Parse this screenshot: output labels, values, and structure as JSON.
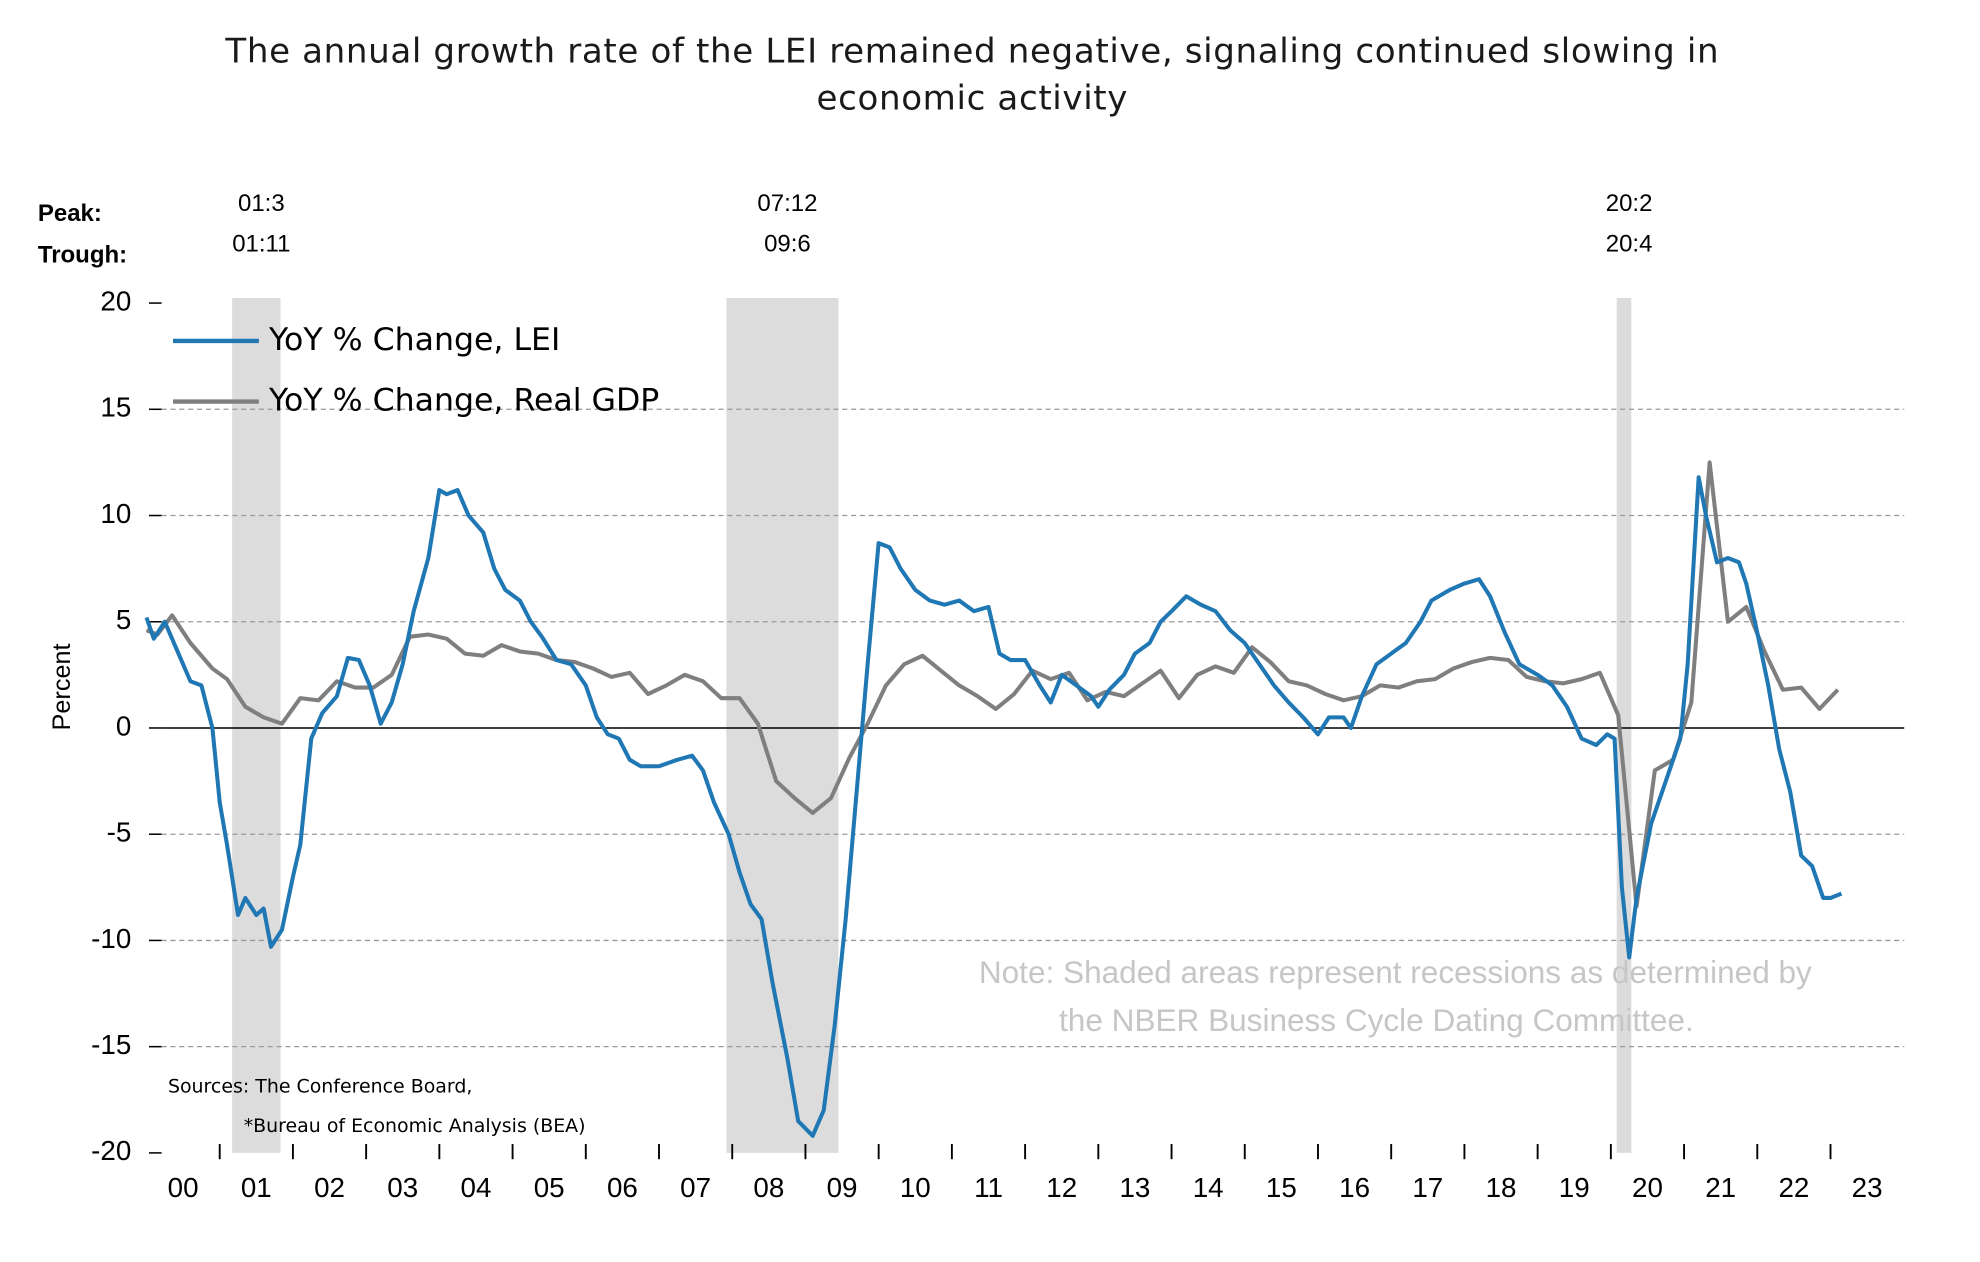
{
  "chart_data": {
    "type": "line",
    "title": "The annual growth rate of the LEI remained negative, signaling continued slowing in",
    "title_line2": "economic activity",
    "y_label": "Percent",
    "peak_label": "Peak:",
    "trough_label": "Trough:",
    "note": "Note: Shaded areas represent recessions as determined by",
    "note_line2": "the NBER Business Cycle Dating Committee.",
    "sources": "Sources: The Conference Board,",
    "sources_line2": "*Bureau of Economic Analysis (BEA)",
    "xlim": [
      2000,
      2023.8
    ],
    "ylim": [
      -20,
      20
    ],
    "yticks": [
      -20,
      -15,
      -10,
      -5,
      0,
      5,
      10,
      15,
      20
    ],
    "xticks": [
      {
        "value": 2000.5,
        "label": "00"
      },
      {
        "value": 2001.5,
        "label": "01"
      },
      {
        "value": 2002.5,
        "label": "02"
      },
      {
        "value": 2003.5,
        "label": "03"
      },
      {
        "value": 2004.5,
        "label": "04"
      },
      {
        "value": 2005.5,
        "label": "05"
      },
      {
        "value": 2006.5,
        "label": "06"
      },
      {
        "value": 2007.5,
        "label": "07"
      },
      {
        "value": 2008.5,
        "label": "08"
      },
      {
        "value": 2009.5,
        "label": "09"
      },
      {
        "value": 2010.5,
        "label": "10"
      },
      {
        "value": 2011.5,
        "label": "11"
      },
      {
        "value": 2012.5,
        "label": "12"
      },
      {
        "value": 2013.5,
        "label": "13"
      },
      {
        "value": 2014.5,
        "label": "14"
      },
      {
        "value": 2015.5,
        "label": "15"
      },
      {
        "value": 2016.5,
        "label": "16"
      },
      {
        "value": 2017.5,
        "label": "17"
      },
      {
        "value": 2018.5,
        "label": "18"
      },
      {
        "value": 2019.5,
        "label": "19"
      },
      {
        "value": 2020.5,
        "label": "20"
      },
      {
        "value": 2021.5,
        "label": "21"
      },
      {
        "value": 2022.5,
        "label": "22"
      },
      {
        "value": 2023.5,
        "label": "23"
      }
    ],
    "grid": true,
    "recession_color": "#dcdcdc",
    "recessions": [
      {
        "peak": "01:3",
        "trough": "01:11",
        "start": 2001.17,
        "end": 2001.83
      },
      {
        "peak": "07:12",
        "trough": "09:6",
        "start": 2007.92,
        "end": 2009.45
      },
      {
        "peak": "20:2",
        "trough": "20:4",
        "start": 2020.08,
        "end": 2020.28
      }
    ],
    "series": [
      {
        "name": "YoY % Change, LEI",
        "color": "#1f77b4",
        "x": [
          2000.0,
          2000.1,
          2000.25,
          2000.4,
          2000.6,
          2000.75,
          2000.9,
          2001.0,
          2001.1,
          2001.25,
          2001.35,
          2001.5,
          2001.6,
          2001.7,
          2001.85,
          2002.0,
          2002.1,
          2002.25,
          2002.4,
          2002.6,
          2002.75,
          2002.9,
          2003.05,
          2003.2,
          2003.35,
          2003.5,
          2003.65,
          2003.85,
          2004.0,
          2004.1,
          2004.25,
          2004.4,
          2004.6,
          2004.75,
          2004.9,
          2005.1,
          2005.25,
          2005.4,
          2005.6,
          2005.8,
          2006.0,
          2006.15,
          2006.3,
          2006.45,
          2006.6,
          2006.75,
          2007.0,
          2007.25,
          2007.45,
          2007.6,
          2007.75,
          2007.95,
          2008.1,
          2008.25,
          2008.4,
          2008.55,
          2008.75,
          2008.9,
          2009.1,
          2009.25,
          2009.4,
          2009.55,
          2009.7,
          2009.85,
          2010.0,
          2010.15,
          2010.3,
          2010.5,
          2010.7,
          2010.9,
          2011.1,
          2011.3,
          2011.5,
          2011.65,
          2011.8,
          2012.0,
          2012.2,
          2012.35,
          2012.5,
          2012.7,
          2012.9,
          2013.0,
          2013.15,
          2013.35,
          2013.5,
          2013.7,
          2013.85,
          2014.0,
          2014.2,
          2014.4,
          2014.6,
          2014.8,
          2015.0,
          2015.2,
          2015.4,
          2015.6,
          2015.8,
          2016.0,
          2016.15,
          2016.35,
          2016.45,
          2016.6,
          2016.8,
          2017.0,
          2017.2,
          2017.4,
          2017.55,
          2017.8,
          2018.0,
          2018.2,
          2018.35,
          2018.55,
          2018.75,
          2019.0,
          2019.2,
          2019.4,
          2019.6,
          2019.8,
          2019.95,
          2020.05,
          2020.15,
          2020.25,
          2020.35,
          2020.55,
          2020.75,
          2020.95,
          2021.05,
          2021.2,
          2021.3,
          2021.45,
          2021.6,
          2021.75,
          2021.85,
          2022.0,
          2022.15,
          2022.3,
          2022.45,
          2022.6,
          2022.75,
          2022.9,
          2023.0,
          2023.15
        ],
        "values": [
          5.2,
          4.2,
          5.0,
          3.8,
          2.2,
          2.0,
          0,
          -3.5,
          -5.5,
          -8.8,
          -8.0,
          -8.8,
          -8.5,
          -10.3,
          -9.5,
          -7.0,
          -5.5,
          -0.5,
          0.7,
          1.5,
          3.3,
          3.2,
          2.0,
          0.2,
          1.2,
          3.0,
          5.5,
          8.0,
          11.2,
          11.0,
          11.2,
          10.0,
          9.2,
          7.5,
          6.5,
          6.0,
          5.0,
          4.3,
          3.2,
          3.0,
          2.0,
          0.5,
          -0.3,
          -0.5,
          -1.5,
          -1.8,
          -1.8,
          -1.5,
          -1.3,
          -2.0,
          -3.5,
          -5.0,
          -6.8,
          -8.3,
          -9.0,
          -12,
          -15.5,
          -18.5,
          -19.2,
          -18,
          -14,
          -9,
          -3,
          3,
          8.7,
          8.5,
          7.5,
          6.5,
          6.0,
          5.8,
          6.0,
          5.5,
          5.7,
          3.5,
          3.2,
          3.2,
          2.0,
          1.2,
          2.5,
          2.0,
          1.5,
          1.0,
          1.8,
          2.5,
          3.5,
          4.0,
          5.0,
          5.5,
          6.2,
          5.8,
          5.5,
          4.6,
          4.0,
          3.0,
          2.0,
          1.2,
          0.5,
          -0.3,
          0.5,
          0.5,
          0,
          1.5,
          3.0,
          3.5,
          4.0,
          5.0,
          6.0,
          6.5,
          6.8,
          7.0,
          6.2,
          4.5,
          3.0,
          2.5,
          2.0,
          1.0,
          -0.5,
          -0.8,
          -0.3,
          -0.5,
          -7.5,
          -10.8,
          -8.0,
          -4.5,
          -2.5,
          -0.5,
          3.0,
          11.8,
          10.0,
          7.8,
          8.0,
          7.8,
          6.8,
          4.5,
          2.0,
          -1.0,
          -3.0,
          -6.0,
          -6.5,
          -8.0,
          -8.0,
          -7.8
        ]
      },
      {
        "name": "YoY % Change, Real GDP",
        "color": "#7f7f7f",
        "x": [
          2000.0,
          2000.15,
          2000.35,
          2000.6,
          2000.9,
          2001.1,
          2001.35,
          2001.6,
          2001.85,
          2002.1,
          2002.35,
          2002.6,
          2002.85,
          2003.1,
          2003.35,
          2003.6,
          2003.85,
          2004.1,
          2004.35,
          2004.6,
          2004.85,
          2005.1,
          2005.35,
          2005.6,
          2005.85,
          2006.1,
          2006.35,
          2006.6,
          2006.85,
          2007.1,
          2007.35,
          2007.6,
          2007.85,
          2008.1,
          2008.35,
          2008.6,
          2008.85,
          2009.1,
          2009.35,
          2009.6,
          2009.85,
          2010.1,
          2010.35,
          2010.6,
          2010.85,
          2011.1,
          2011.35,
          2011.6,
          2011.85,
          2012.1,
          2012.35,
          2012.6,
          2012.85,
          2013.1,
          2013.35,
          2013.6,
          2013.85,
          2014.1,
          2014.35,
          2014.6,
          2014.85,
          2015.1,
          2015.35,
          2015.6,
          2015.85,
          2016.1,
          2016.35,
          2016.6,
          2016.85,
          2017.1,
          2017.35,
          2017.6,
          2017.85,
          2018.1,
          2018.35,
          2018.6,
          2018.85,
          2019.1,
          2019.35,
          2019.6,
          2019.85,
          2020.1,
          2020.35,
          2020.6,
          2020.85,
          2021.1,
          2021.35,
          2021.6,
          2021.85,
          2022.1,
          2022.35,
          2022.6,
          2022.85,
          2023.1
        ],
        "values": [
          4.6,
          4.4,
          5.3,
          4.0,
          2.8,
          2.3,
          1.0,
          0.5,
          0.2,
          1.4,
          1.3,
          2.2,
          1.9,
          1.9,
          2.5,
          4.3,
          4.4,
          4.2,
          3.5,
          3.4,
          3.9,
          3.6,
          3.5,
          3.2,
          3.1,
          2.8,
          2.4,
          2.6,
          1.6,
          2.0,
          2.5,
          2.2,
          1.4,
          1.4,
          0.2,
          -2.5,
          -3.3,
          -4.0,
          -3.3,
          -1.4,
          0.2,
          2.0,
          3.0,
          3.4,
          2.7,
          2.0,
          1.5,
          0.9,
          1.6,
          2.7,
          2.3,
          2.6,
          1.3,
          1.7,
          1.5,
          2.1,
          2.7,
          1.4,
          2.5,
          2.9,
          2.6,
          3.8,
          3.1,
          2.2,
          2.0,
          1.6,
          1.3,
          1.5,
          2.0,
          1.9,
          2.2,
          2.3,
          2.8,
          3.1,
          3.3,
          3.2,
          2.4,
          2.2,
          2.1,
          2.3,
          2.6,
          0.6,
          -8.4,
          -2.0,
          -1.5,
          1.2,
          12.5,
          5.0,
          5.7,
          3.6,
          1.8,
          1.9,
          0.9,
          1.8
        ]
      }
    ]
  }
}
